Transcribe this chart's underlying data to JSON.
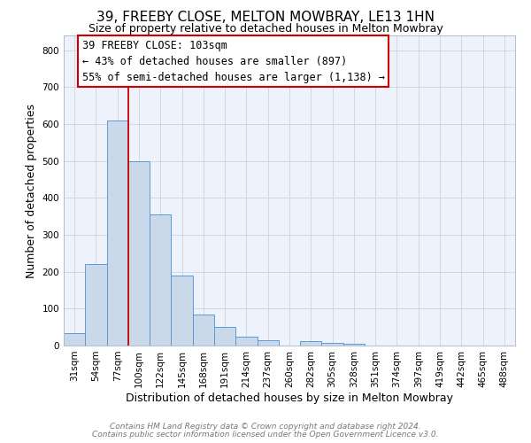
{
  "title": "39, FREEBY CLOSE, MELTON MOWBRAY, LE13 1HN",
  "subtitle": "Size of property relative to detached houses in Melton Mowbray",
  "xlabel": "Distribution of detached houses by size in Melton Mowbray",
  "ylabel": "Number of detached properties",
  "bar_labels": [
    "31sqm",
    "54sqm",
    "77sqm",
    "100sqm",
    "122sqm",
    "145sqm",
    "168sqm",
    "191sqm",
    "214sqm",
    "237sqm",
    "260sqm",
    "282sqm",
    "305sqm",
    "328sqm",
    "351sqm",
    "374sqm",
    "397sqm",
    "419sqm",
    "442sqm",
    "465sqm",
    "488sqm"
  ],
  "bar_heights": [
    33,
    220,
    610,
    500,
    355,
    190,
    85,
    50,
    25,
    15,
    0,
    12,
    8,
    5,
    0,
    0,
    0,
    0,
    0,
    0,
    0
  ],
  "bar_color": "#cad9ea",
  "bar_edge_color": "#5b9bd5",
  "vline_color": "#cc0000",
  "annotation_text": "39 FREEBY CLOSE: 103sqm\n← 43% of detached houses are smaller (897)\n55% of semi-detached houses are larger (1,138) →",
  "annotation_box_color": "#ffffff",
  "annotation_box_edge": "#cc0000",
  "footer1": "Contains HM Land Registry data © Crown copyright and database right 2024.",
  "footer2": "Contains public sector information licensed under the Open Government Licence v3.0.",
  "ylim": [
    0,
    840
  ],
  "yticks": [
    0,
    100,
    200,
    300,
    400,
    500,
    600,
    700,
    800
  ],
  "grid_color": "#d0d8e8",
  "background_color": "#eef2fa",
  "fig_background": "#ffffff",
  "title_fontsize": 11,
  "subtitle_fontsize": 9,
  "axis_label_fontsize": 9,
  "tick_fontsize": 7.5,
  "annotation_fontsize": 8.5,
  "footer_fontsize": 6.5
}
